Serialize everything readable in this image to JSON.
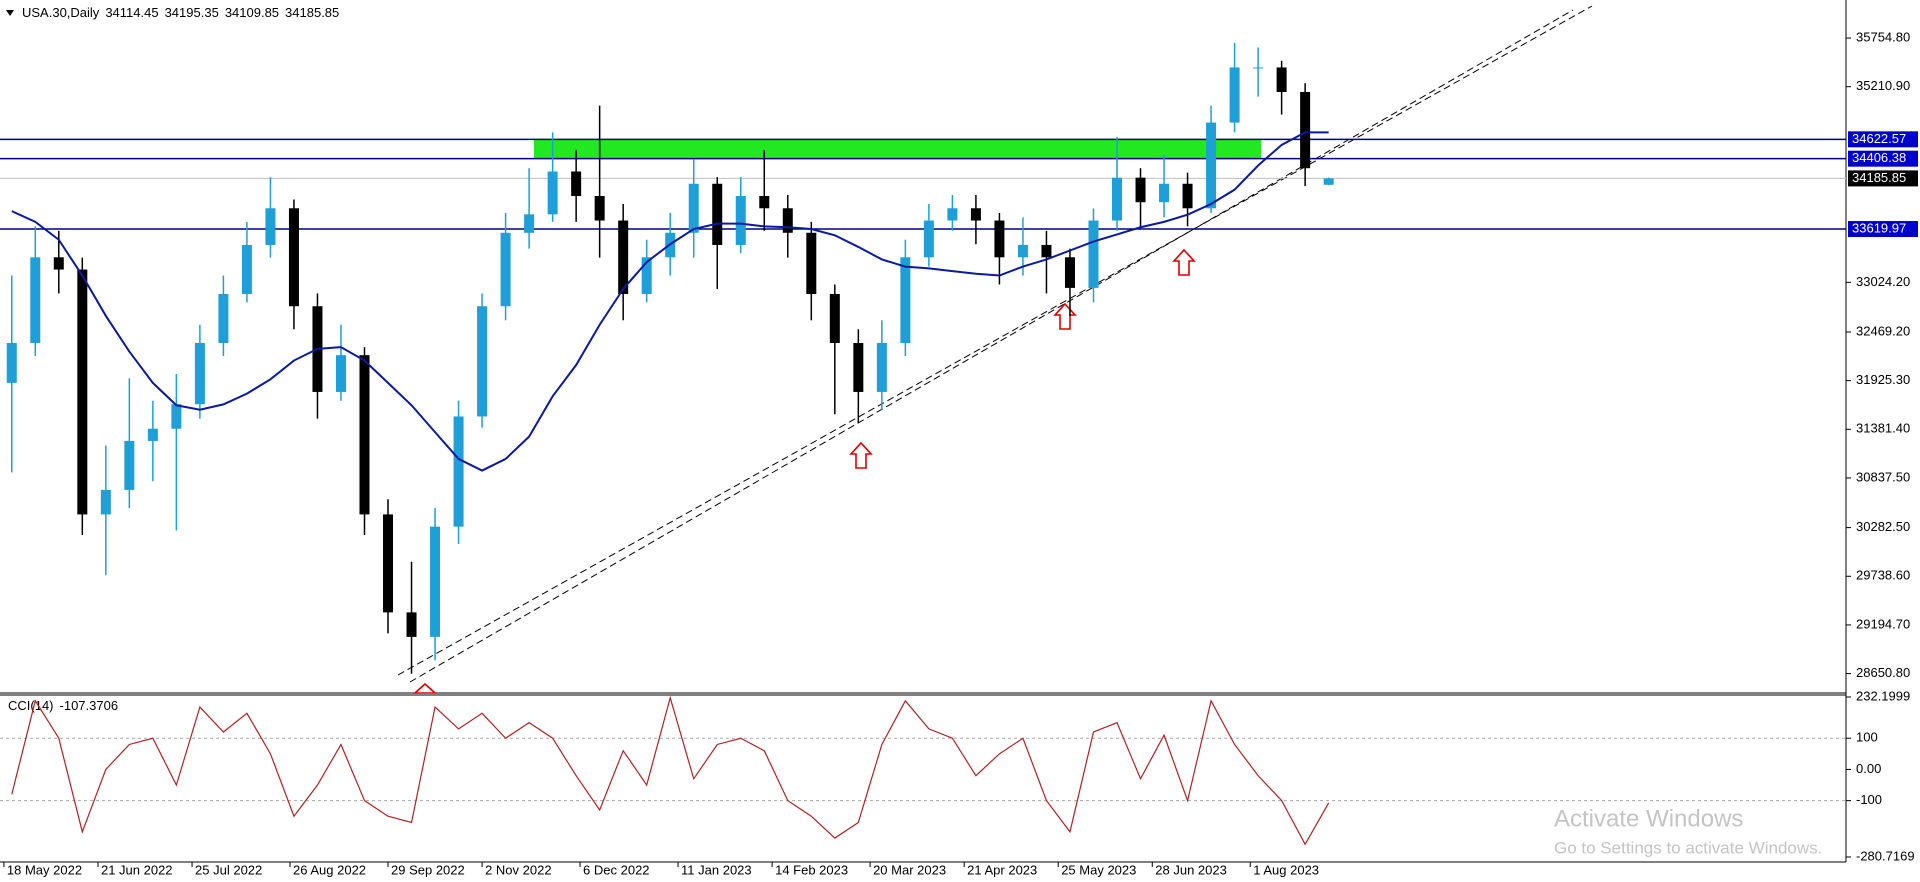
{
  "chart_data": [
    {
      "type": "candlestick",
      "title": "USA.30,Daily",
      "x": [
        3,
        9,
        15,
        21,
        27,
        33,
        39,
        45,
        51,
        57,
        63,
        69,
        75,
        81,
        87,
        93,
        99,
        105,
        111,
        117,
        123,
        129,
        135,
        141,
        147,
        153,
        159,
        165,
        171,
        177,
        183,
        189,
        195,
        201,
        207,
        213,
        219,
        225,
        231,
        237,
        243,
        249,
        255,
        261,
        267,
        273,
        279,
        285,
        291,
        297,
        303,
        309,
        315,
        321,
        327,
        333,
        339
      ],
      "open": [
        31900,
        32346,
        33304,
        33167,
        30430,
        30704,
        31251,
        31388,
        31662,
        32346,
        32894,
        33442,
        33852,
        32757,
        31799,
        32210,
        30430,
        29335,
        29061,
        30293,
        31525,
        32757,
        33578,
        33784,
        34263,
        33989,
        33715,
        32894,
        33304,
        33578,
        34126,
        33442,
        33989,
        33852,
        33578,
        32894,
        32346,
        31799,
        32346,
        33304,
        33715,
        33852,
        33715,
        33304,
        33442,
        33304,
        32962,
        33715,
        34194,
        33920,
        34126,
        33852,
        34810,
        35426,
        35426,
        35152,
        34114.45
      ],
      "high": [
        33100,
        33650,
        33600,
        33300,
        31200,
        31950,
        31700,
        32000,
        32550,
        33100,
        33700,
        34200,
        33950,
        32900,
        32550,
        32300,
        30600,
        29900,
        30500,
        31700,
        32900,
        33800,
        34300,
        34700,
        34500,
        35000,
        33900,
        33500,
        33800,
        34400,
        34200,
        34200,
        34500,
        34000,
        33700,
        33000,
        32500,
        32600,
        33500,
        33900,
        34000,
        34000,
        33800,
        33750,
        33600,
        33400,
        33850,
        34650,
        34300,
        34450,
        34250,
        35000,
        35700,
        35650,
        35500,
        35250,
        34195.35
      ],
      "low": [
        30900,
        32200,
        32900,
        30200,
        29750,
        30500,
        30800,
        30250,
        31500,
        32200,
        32800,
        33300,
        32500,
        31500,
        31700,
        30200,
        29100,
        28650,
        28800,
        30100,
        31400,
        32600,
        33400,
        33700,
        33700,
        33300,
        32600,
        32800,
        33100,
        33300,
        32950,
        33350,
        33600,
        33300,
        32600,
        31550,
        31450,
        31600,
        32200,
        33200,
        33600,
        33450,
        33000,
        33100,
        32900,
        32650,
        32800,
        33600,
        33650,
        33750,
        33650,
        33800,
        34700,
        35100,
        34900,
        34100,
        34109.85
      ],
      "close": [
        32346,
        33304,
        33167,
        30430,
        30704,
        31251,
        31388,
        31662,
        32346,
        32894,
        33442,
        33852,
        32757,
        31799,
        32210,
        30430,
        29335,
        29061,
        30293,
        31525,
        32757,
        33578,
        33784,
        34263,
        33989,
        33715,
        32894,
        33304,
        33578,
        34126,
        33442,
        33989,
        33852,
        33578,
        32894,
        32346,
        31799,
        32346,
        33304,
        33715,
        33852,
        33715,
        33304,
        33442,
        33304,
        32962,
        33715,
        34194,
        33920,
        34126,
        33852,
        34810,
        35426,
        35426,
        35152,
        34300,
        34185.85
      ],
      "up_color": "#1e9fd8",
      "down_color": "#000000",
      "overlay": {
        "color": "#0a1aa0",
        "values": [
          33820,
          33700,
          33500,
          33100,
          32650,
          32250,
          31900,
          31650,
          31600,
          31660,
          31780,
          31940,
          32150,
          32280,
          32300,
          32150,
          31900,
          31650,
          31350,
          31050,
          30920,
          31050,
          31300,
          31750,
          32100,
          32550,
          32950,
          33250,
          33450,
          33620,
          33680,
          33680,
          33650,
          33640,
          33620,
          33550,
          33420,
          33280,
          33200,
          33180,
          33150,
          33120,
          33100,
          33200,
          33280,
          33380,
          33480,
          33560,
          33640,
          33700,
          33780,
          33900,
          34060,
          34330,
          34560,
          34700,
          34700
        ]
      },
      "price_lines": [
        34622.57,
        34406.38,
        33619.97
      ],
      "price_line_color": "#000080",
      "zone_color": "#22e822",
      "xlim": [
        0,
        471
      ],
      "xticks": [
        {
          "value": 1,
          "label": "18 May 2022"
        },
        {
          "value": 25,
          "label": "21 Jun 2022"
        },
        {
          "value": 49,
          "label": "25 Jul 2022"
        },
        {
          "value": 74,
          "label": "26 Aug 2022"
        },
        {
          "value": 99,
          "label": "29 Sep 2022"
        },
        {
          "value": 123,
          "label": "2 Nov 2022"
        },
        {
          "value": 148,
          "label": "6 Dec 2022"
        },
        {
          "value": 173,
          "label": "11 Jan 2023"
        },
        {
          "value": 197,
          "label": "14 Feb 2023"
        },
        {
          "value": 222,
          "label": "20 Mar 2023"
        },
        {
          "value": 246,
          "label": "21 Apr 2023"
        },
        {
          "value": 270,
          "label": "25 May 2023"
        },
        {
          "value": 294,
          "label": "28 Jun 2023"
        },
        {
          "value": 319,
          "label": "1 Aug 2023"
        }
      ],
      "ylim": [
        28445,
        36180
      ],
      "yticks": [
        {
          "value": 35754.8,
          "label": "35754.80"
        },
        {
          "value": 35210.9,
          "label": "35210.90"
        },
        {
          "value": 33024.2,
          "label": "33024.20"
        },
        {
          "value": 32469.2,
          "label": "32469.20"
        },
        {
          "value": 31925.3,
          "label": "31925.30"
        },
        {
          "value": 31381.4,
          "label": "31381.40"
        },
        {
          "value": 30837.5,
          "label": "30837.50"
        },
        {
          "value": 30282.5,
          "label": "30282.50"
        },
        {
          "value": 29738.6,
          "label": "29738.60"
        },
        {
          "value": 29194.7,
          "label": "29194.70"
        },
        {
          "value": 28650.8,
          "label": "28650.80"
        }
      ]
    },
    {
      "type": "line",
      "title": "CCI(14)",
      "color": "#b22222",
      "x": [
        3,
        9,
        15,
        21,
        27,
        33,
        39,
        45,
        51,
        57,
        63,
        69,
        75,
        81,
        87,
        93,
        99,
        105,
        111,
        117,
        123,
        129,
        135,
        141,
        147,
        153,
        159,
        165,
        171,
        177,
        183,
        189,
        195,
        201,
        207,
        213,
        219,
        225,
        231,
        237,
        243,
        249,
        255,
        261,
        267,
        273,
        279,
        285,
        291,
        297,
        303,
        309,
        315,
        321,
        327,
        333,
        339
      ],
      "values": [
        -80,
        220,
        100,
        -200,
        0,
        80,
        100,
        -50,
        200,
        120,
        180,
        50,
        -150,
        -50,
        80,
        -100,
        -150,
        -170,
        200,
        130,
        180,
        100,
        150,
        100,
        -20,
        -130,
        60,
        -50,
        230,
        -30,
        80,
        100,
        60,
        -100,
        -150,
        -220,
        -170,
        80,
        220,
        130,
        100,
        -20,
        50,
        100,
        -100,
        -200,
        120,
        150,
        -30,
        110,
        -100,
        220,
        80,
        -20,
        -100,
        -240,
        -107.3706
      ],
      "ylim": [
        -280.7169,
        232.1999
      ],
      "yticks": [
        232.1999,
        100,
        {
          "value": 0,
          "label": "0.00"
        },
        -100,
        -280.7169
      ],
      "grid_levels": [
        100,
        -100
      ]
    }
  ],
  "watermark": {
    "title": "Activate Windows",
    "subtitle": "Go to Settings to activate Windows."
  }
}
